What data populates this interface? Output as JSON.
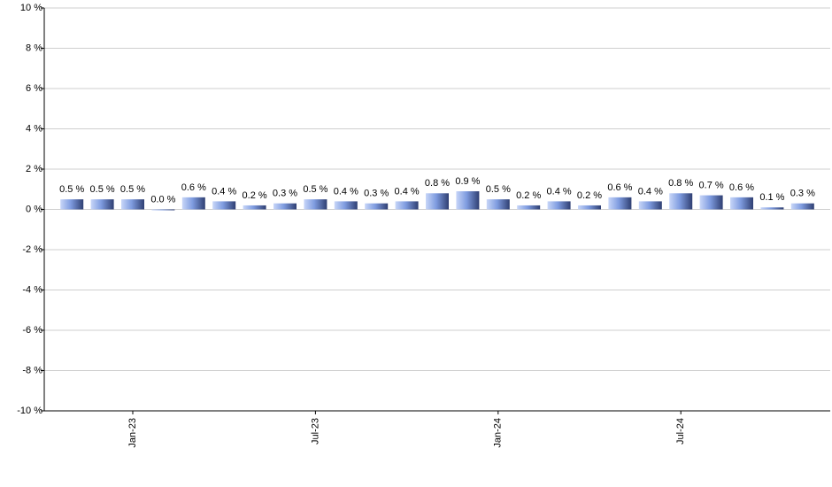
{
  "chart_data": {
    "type": "bar",
    "categories": [
      null,
      null,
      "Jan-23",
      null,
      null,
      null,
      null,
      null,
      "Jul-23",
      null,
      null,
      null,
      null,
      null,
      "Jan-24",
      null,
      null,
      null,
      null,
      null,
      "Jul-24",
      null,
      null,
      null,
      null
    ],
    "values": [
      0.5,
      0.5,
      0.5,
      0.0,
      0.6,
      0.4,
      0.2,
      0.3,
      0.5,
      0.4,
      0.3,
      0.4,
      0.8,
      0.9,
      0.5,
      0.2,
      0.4,
      0.2,
      0.6,
      0.4,
      0.8,
      0.7,
      0.6,
      0.1,
      0.3
    ],
    "value_labels": [
      "0.5 %",
      "0.5 %",
      "0.5 %",
      "0.0 %",
      "0.6 %",
      "0.4 %",
      "0.2 %",
      "0.3 %",
      "0.5 %",
      "0.4 %",
      "0.3 %",
      "0.4 %",
      "0.8 %",
      "0.9 %",
      "0.5 %",
      "0.2 %",
      "0.4 %",
      "0.2 %",
      "0.6 %",
      "0.4 %",
      "0.8 %",
      "0.7 %",
      "0.6 %",
      "0.1 %",
      "0.3 %"
    ],
    "color": "#7f9ce0",
    "ylim": [
      -10,
      10
    ],
    "yticks": [
      {
        "value": -10,
        "label": "-10 %"
      },
      {
        "value": -8,
        "label": "-8 %"
      },
      {
        "value": -6,
        "label": "-6 %"
      },
      {
        "value": -4,
        "label": "-4 %"
      },
      {
        "value": -2,
        "label": "-2 %"
      },
      {
        "value": 0,
        "label": "0 %"
      },
      {
        "value": 2,
        "label": "2 %"
      },
      {
        "value": 4,
        "label": "4 %"
      },
      {
        "value": 6,
        "label": "6 %"
      },
      {
        "value": 8,
        "label": "8 %"
      },
      {
        "value": 10,
        "label": "10 %"
      }
    ],
    "grid": true
  }
}
